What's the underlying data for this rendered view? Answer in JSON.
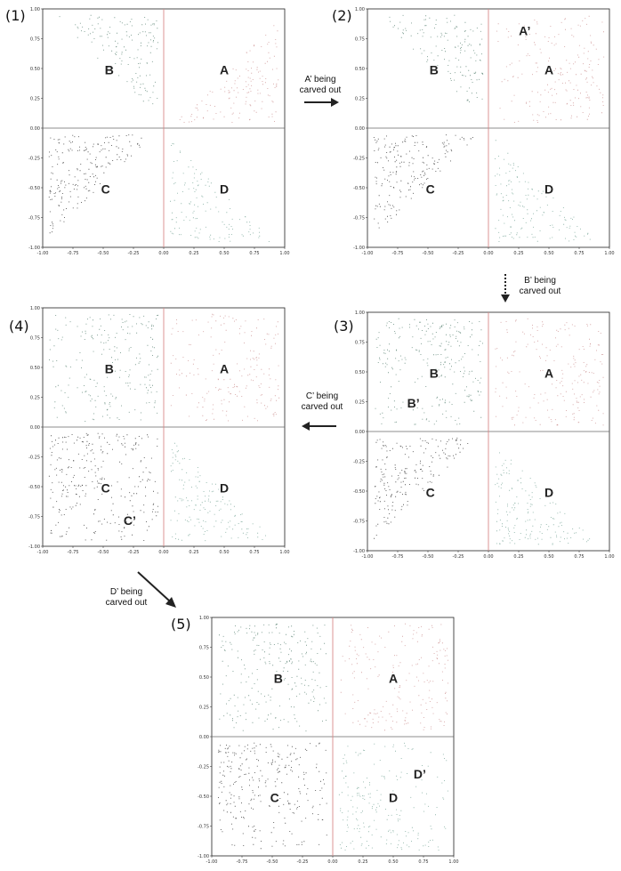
{
  "colors": {
    "A": "#c98a8a",
    "B": "#4f7a6a",
    "C": "#222222",
    "D": "#6fa091",
    "axis_red": "#d88a8a",
    "axis_dark": "#666666"
  },
  "axes": {
    "xticks": [
      "-1.00",
      "-0.75",
      "-0.50",
      "-0.25",
      "0.00",
      "0.25",
      "0.50",
      "0.75",
      "1.00"
    ],
    "yticks": [
      "1.00",
      "0.75",
      "0.50",
      "0.25",
      "0.00",
      "-0.25",
      "-0.50",
      "-0.75",
      "-1.00"
    ]
  },
  "panels": [
    {
      "id": "p1",
      "number": "(1)",
      "labels": {
        "A": "A",
        "B": "B",
        "C": "C",
        "D": "D"
      }
    },
    {
      "id": "p2",
      "number": "(2)",
      "labels": {
        "A": "A",
        "B": "B",
        "C": "C",
        "D": "D",
        "Aprime": "A’"
      }
    },
    {
      "id": "p3",
      "number": "(3)",
      "labels": {
        "A": "A",
        "B": "B",
        "C": "C",
        "D": "D",
        "Bprime": "B’"
      }
    },
    {
      "id": "p4",
      "number": "(4)",
      "labels": {
        "A": "A",
        "B": "B",
        "C": "C",
        "D": "D",
        "Cprime": "C’"
      }
    },
    {
      "id": "p5",
      "number": "(5)",
      "labels": {
        "A": "A",
        "B": "B",
        "C": "C",
        "D": "D",
        "Dprime": "D’"
      }
    }
  ],
  "arrows": [
    {
      "line1": "A’ being",
      "line2": "carved out"
    },
    {
      "line1": "B’ being",
      "line2": "carved out"
    },
    {
      "line1": "C’ being",
      "line2": "carved out"
    },
    {
      "line1": "D’ being",
      "line2": "carved out"
    }
  ]
}
